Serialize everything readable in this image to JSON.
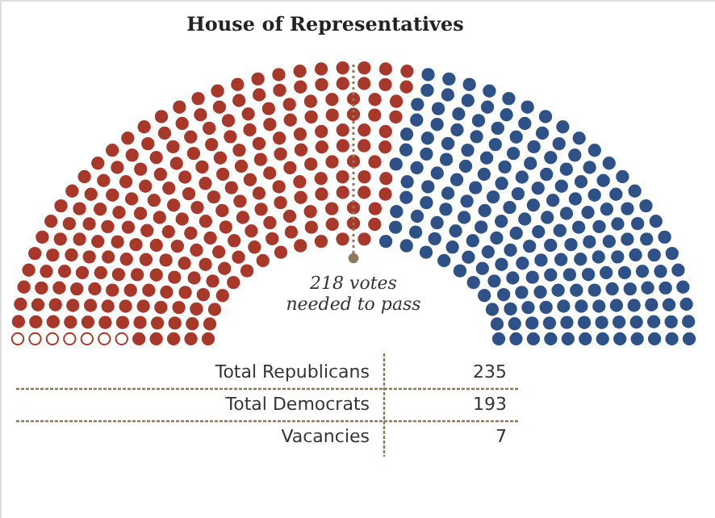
{
  "chart_data": {
    "type": "other",
    "title": "House of Representatives",
    "categories": [
      "Total Republicans",
      "Total Democrats",
      "Vacancies"
    ],
    "values": [
      235,
      193,
      7
    ],
    "colors": [
      "#a8382a",
      "#2e5288",
      "#a8382a"
    ],
    "data_labels": true,
    "annotations": [
      "218 votes\nneeded to pass"
    ]
  }
}
